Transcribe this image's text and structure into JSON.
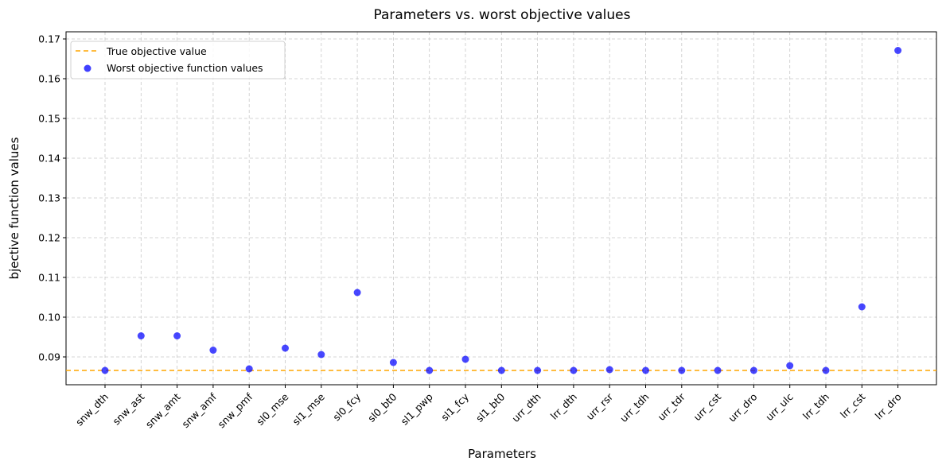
{
  "chart_data": {
    "type": "scatter",
    "title": "Parameters vs. worst objective values",
    "xlabel": "Parameters",
    "ylabel": "bjective function values",
    "categories": [
      "snw_dth",
      "snw_ast",
      "snw_amt",
      "snw_amf",
      "snw_pmf",
      "sl0_mse",
      "sl1_mse",
      "sl0_fcy",
      "sl0_bt0",
      "sl1_pwp",
      "sl1_fcy",
      "sl1_bt0",
      "urr_dth",
      "lrr_dth",
      "urr_rsr",
      "urr_tdh",
      "urr_tdr",
      "urr_cst",
      "urr_dro",
      "urr_ulc",
      "lrr_tdh",
      "lrr_cst",
      "lrr_dro"
    ],
    "series": [
      {
        "name": "Worst objective function values",
        "color": "#0000ff",
        "values": [
          0.0866,
          0.0953,
          0.0953,
          0.0917,
          0.087,
          0.0922,
          0.0906,
          0.1062,
          0.0886,
          0.0866,
          0.0894,
          0.0866,
          0.0866,
          0.0866,
          0.0868,
          0.0866,
          0.0866,
          0.0866,
          0.0866,
          0.0878,
          0.0866,
          0.1026,
          0.1671
        ]
      }
    ],
    "reference_line": {
      "name": "True objective value",
      "value": 0.0866,
      "color": "#ffa500",
      "style": "dashed"
    },
    "ylim": [
      0.083,
      0.1718
    ],
    "yticks": [
      0.09,
      0.1,
      0.11,
      0.12,
      0.13,
      0.14,
      0.15,
      0.16,
      0.17
    ],
    "ytick_labels": [
      "0.09",
      "0.10",
      "0.11",
      "0.12",
      "0.13",
      "0.14",
      "0.15",
      "0.16",
      "0.17"
    ],
    "grid": true,
    "legend_position": "top-left"
  }
}
